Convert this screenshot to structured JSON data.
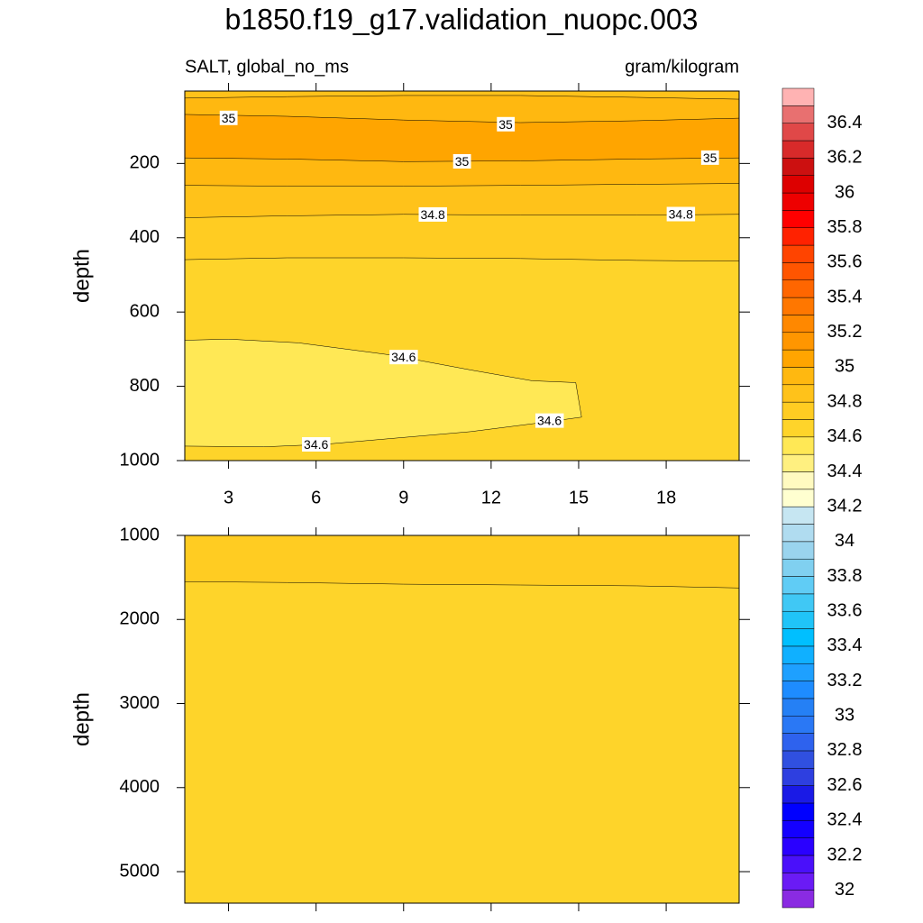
{
  "chart_data": {
    "type": "contour",
    "title": "b1850.f19_g17.validation_nuopc.003",
    "left_string": "SALT, global_no_ms",
    "right_string": "gram/kilogram",
    "colorbar": {
      "levels": [
        32,
        32.1,
        32.2,
        32.3,
        32.4,
        32.5,
        32.6,
        32.7,
        32.8,
        32.9,
        33,
        33.1,
        33.2,
        33.3,
        33.4,
        33.5,
        33.6,
        33.7,
        33.8,
        33.9,
        34,
        34.1,
        34.2,
        34.3,
        34.4,
        34.5,
        34.6,
        34.7,
        34.8,
        34.9,
        35,
        35.1,
        35.2,
        35.3,
        35.4,
        35.5,
        35.6,
        35.7,
        35.8,
        35.9,
        36,
        36.1,
        36.2,
        36.3,
        36.4,
        36.5
      ],
      "colors": [
        "#8a2be2",
        "#6a1bf5",
        "#4a10fa",
        "#2a00ff",
        "#1400ff",
        "#0000ff",
        "#1a1ae6",
        "#2e3fe0",
        "#3050e0",
        "#2e62ee",
        "#2a78f5",
        "#2580f5",
        "#1e8cff",
        "#1ea0ff",
        "#10b0ff",
        "#00bfff",
        "#20c4f8",
        "#40c8f5",
        "#60ccf5",
        "#80d0f0",
        "#9ad4ee",
        "#b0dcf0",
        "#c6e6f2",
        "#ffffd0",
        "#fffac0",
        "#fff080",
        "#ffe855",
        "#fed42a",
        "#ffcc22",
        "#ffc21a",
        "#ffb810",
        "#ffa500",
        "#ff9600",
        "#ff8800",
        "#ff7700",
        "#ff6600",
        "#ff5500",
        "#ff4400",
        "#ff2200",
        "#ff0000",
        "#ee0000",
        "#dd0000",
        "#cc1010",
        "#d82a2a",
        "#e04848",
        "#e87070",
        "#ffb3b3"
      ],
      "ticks": [
        32,
        32.2,
        32.4,
        32.6,
        32.8,
        33,
        33.2,
        33.4,
        33.6,
        33.8,
        34,
        34.2,
        34.4,
        34.6,
        34.8,
        35,
        35.2,
        35.4,
        35.6,
        35.8,
        36,
        36.2,
        36.4
      ]
    },
    "panels": [
      {
        "xlim": [
          1.5,
          20.5
        ],
        "ylim": [
          1000,
          5
        ],
        "xticks": [
          3,
          6,
          9,
          12,
          15,
          18
        ],
        "xtick_labels": true,
        "yticks": [
          200,
          400,
          600,
          800,
          1000
        ],
        "ylabel": "depth",
        "contours": [
          {
            "level": 34.9,
            "below": "higher",
            "x": [
              1.5,
              5,
              9,
              13,
              17,
              20.5
            ],
            "y": [
              24,
              20,
              17,
              17,
              22,
              27
            ],
            "labels": []
          },
          {
            "level": 35,
            "below": "higher",
            "x": [
              1.5,
              5,
              9,
              13,
              17,
              20.5
            ],
            "y": [
              68,
              73,
              83,
              90,
              85,
              78
            ],
            "labels": [
              {
                "x": 3,
                "y": 78
              },
              {
                "x": 12.5,
                "y": 95
              }
            ]
          },
          {
            "level": 35,
            "below": "lower",
            "x": [
              1.5,
              5,
              9,
              13,
              17,
              20.5
            ],
            "y": [
              185,
              188,
              195,
              193,
              188,
              185
            ],
            "labels": [
              {
                "x": 11,
                "y": 195
              },
              {
                "x": 19.5,
                "y": 185
              }
            ]
          },
          {
            "level": 34.9,
            "below": "lower",
            "x": [
              1.5,
              5,
              9,
              13,
              17,
              20.5
            ],
            "y": [
              259,
              261,
              261,
              259,
              256,
              254
            ],
            "labels": []
          },
          {
            "level": 34.8,
            "below": "lower",
            "x": [
              1.5,
              5,
              9,
              13,
              17,
              20.5
            ],
            "y": [
              346,
              341,
              337,
              339,
              339,
              337
            ],
            "labels": [
              {
                "x": 10,
                "y": 338
              },
              {
                "x": 18.5,
                "y": 337
              }
            ]
          },
          {
            "level": 34.7,
            "below": "lower",
            "x": [
              1.5,
              5,
              9,
              13,
              17,
              20.5
            ],
            "y": [
              459,
              454,
              454,
              456,
              461,
              463
            ],
            "labels": []
          },
          {
            "level": 34.6,
            "inside": "lower",
            "x": [
              1.5,
              3,
              5.4,
              8.5,
              11.3,
              13.4,
              14.9,
              15.1,
              13.7,
              11.3,
              8.5,
              6.3,
              4.2,
              1.5
            ],
            "y": [
              676,
              673,
              683,
              715,
              756,
              785,
              790,
              883,
              898,
              922,
              941,
              956,
              963,
              961
            ],
            "labels": [
              {
                "x": 9,
                "y": 722
              },
              {
                "x": 14,
                "y": 893
              },
              {
                "x": 6,
                "y": 957
              }
            ]
          }
        ]
      },
      {
        "xlim": [
          1.5,
          20.5
        ],
        "ylim": [
          5375,
          1000
        ],
        "xticks": [
          3,
          6,
          9,
          12,
          15,
          18
        ],
        "xtick_labels": false,
        "yticks": [
          1000,
          2000,
          3000,
          4000,
          5000
        ],
        "ylabel": "depth",
        "contours": [
          {
            "level": 34.7,
            "below": "lower",
            "x": [
              1.5,
              5,
              9,
              13,
              17,
              20.5
            ],
            "y": [
              1550,
              1560,
              1580,
              1590,
              1600,
              1625
            ],
            "labels": []
          }
        ]
      }
    ]
  }
}
